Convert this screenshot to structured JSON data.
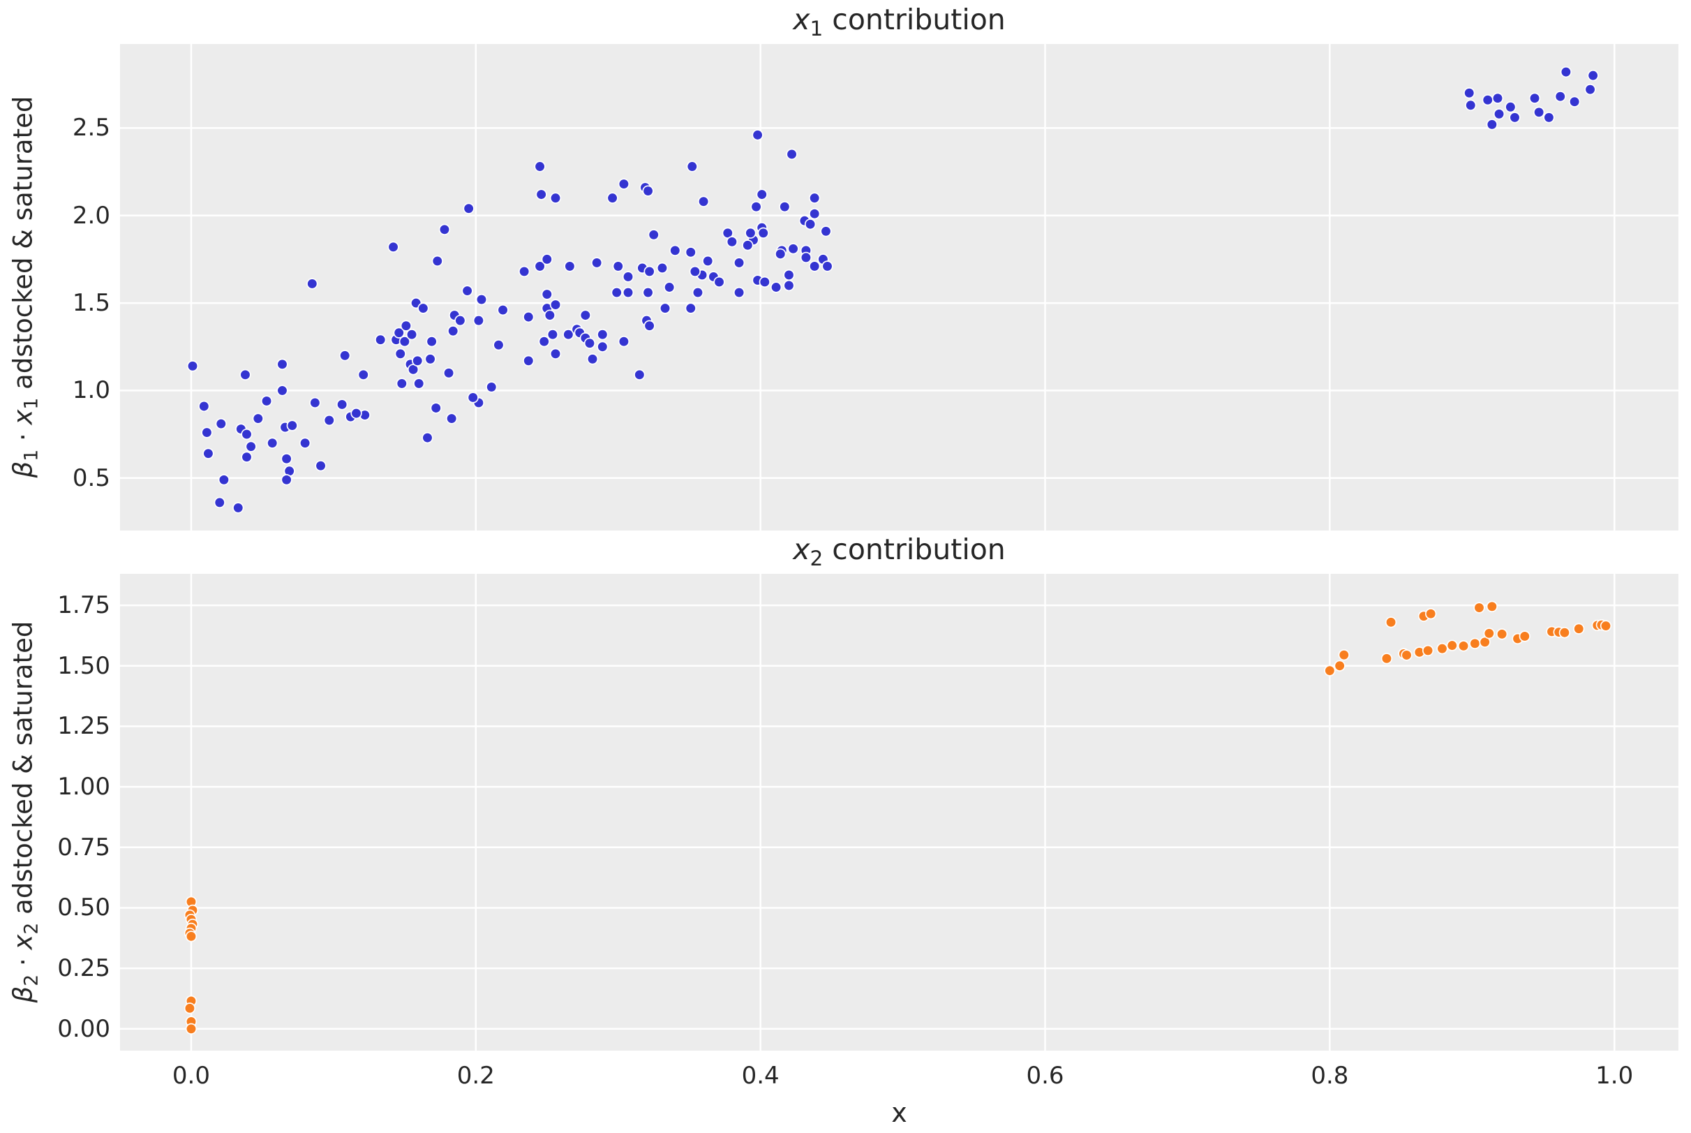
{
  "figure": {
    "background": "#ffffff",
    "axes_background": "#ececec",
    "grid_color": "#ffffff",
    "text_color": "#262626",
    "marker_edge_color": "#ffffff"
  },
  "chart_data": [
    {
      "type": "scatter",
      "title_parts": {
        "var": "x",
        "sub": "1",
        "rest": " contribution"
      },
      "title_text": "x1 contribution",
      "ylabel_parts": {
        "beta": "β",
        "beta_sub": "1",
        "mid": " · ",
        "var": "x",
        "var_sub": "1",
        "rest": " adstocked & saturated"
      },
      "ylabel_text": "β1 · x1 adstocked & saturated",
      "marker_color": "#3434d1",
      "grid": true,
      "legend": false,
      "xlim": [
        -0.05,
        1.045
      ],
      "ylim": [
        0.2,
        2.98
      ],
      "xticks": [
        0.0,
        0.2,
        0.4,
        0.6,
        0.8,
        1.0
      ],
      "xtick_labels": [
        "0.0",
        "0.2",
        "0.4",
        "0.6",
        "0.8",
        "1.0"
      ],
      "show_xtick_labels": false,
      "yticks": [
        0.5,
        1.0,
        1.5,
        2.0,
        2.5
      ],
      "ytick_labels": [
        "0.5",
        "1.0",
        "1.5",
        "2.0",
        "2.5"
      ],
      "points": [
        [
          0.195,
          2.04
        ],
        [
          0.178,
          1.92
        ],
        [
          0.142,
          1.82
        ],
        [
          0.173,
          1.74
        ],
        [
          0.085,
          1.61
        ],
        [
          0.194,
          1.57
        ],
        [
          0.245,
          2.28
        ],
        [
          0.246,
          2.12
        ],
        [
          0.256,
          2.1
        ],
        [
          0.296,
          2.1
        ],
        [
          0.304,
          2.18
        ],
        [
          0.319,
          2.16
        ],
        [
          0.321,
          2.14
        ],
        [
          0.352,
          2.28
        ],
        [
          0.36,
          2.08
        ],
        [
          0.398,
          2.46
        ],
        [
          0.422,
          2.35
        ],
        [
          0.401,
          2.12
        ],
        [
          0.397,
          2.05
        ],
        [
          0.417,
          2.05
        ],
        [
          0.438,
          2.1
        ],
        [
          0.438,
          2.01
        ],
        [
          0.431,
          1.97
        ],
        [
          0.435,
          1.95
        ],
        [
          0.446,
          1.91
        ],
        [
          0.401,
          1.93
        ],
        [
          0.402,
          1.9
        ],
        [
          0.395,
          1.86
        ],
        [
          0.415,
          1.8
        ],
        [
          0.414,
          1.78
        ],
        [
          0.423,
          1.81
        ],
        [
          0.432,
          1.8
        ],
        [
          0.432,
          1.76
        ],
        [
          0.444,
          1.75
        ],
        [
          0.377,
          1.9
        ],
        [
          0.38,
          1.85
        ],
        [
          0.351,
          1.79
        ],
        [
          0.325,
          1.89
        ],
        [
          0.391,
          1.83
        ],
        [
          0.393,
          1.9
        ],
        [
          0.363,
          1.74
        ],
        [
          0.367,
          1.65
        ],
        [
          0.359,
          1.66
        ],
        [
          0.354,
          1.68
        ],
        [
          0.385,
          1.73
        ],
        [
          0.398,
          1.63
        ],
        [
          0.403,
          1.62
        ],
        [
          0.42,
          1.66
        ],
        [
          0.438,
          1.71
        ],
        [
          0.447,
          1.71
        ],
        [
          0.34,
          1.8
        ],
        [
          0.234,
          1.68
        ],
        [
          0.245,
          1.71
        ],
        [
          0.25,
          1.75
        ],
        [
          0.266,
          1.71
        ],
        [
          0.285,
          1.73
        ],
        [
          0.3,
          1.71
        ],
        [
          0.307,
          1.65
        ],
        [
          0.317,
          1.7
        ],
        [
          0.322,
          1.68
        ],
        [
          0.331,
          1.7
        ],
        [
          0.336,
          1.59
        ],
        [
          0.371,
          1.62
        ],
        [
          0.411,
          1.59
        ],
        [
          0.42,
          1.6
        ],
        [
          0.299,
          1.56
        ],
        [
          0.307,
          1.56
        ],
        [
          0.321,
          1.56
        ],
        [
          0.356,
          1.56
        ],
        [
          0.385,
          1.56
        ],
        [
          0.204,
          1.52
        ],
        [
          0.219,
          1.46
        ],
        [
          0.202,
          1.4
        ],
        [
          0.237,
          1.42
        ],
        [
          0.25,
          1.55
        ],
        [
          0.25,
          1.47
        ],
        [
          0.252,
          1.43
        ],
        [
          0.256,
          1.49
        ],
        [
          0.216,
          1.26
        ],
        [
          0.237,
          1.17
        ],
        [
          0.248,
          1.28
        ],
        [
          0.254,
          1.32
        ],
        [
          0.256,
          1.21
        ],
        [
          0.265,
          1.32
        ],
        [
          0.271,
          1.35
        ],
        [
          0.273,
          1.33
        ],
        [
          0.277,
          1.43
        ],
        [
          0.277,
          1.3
        ],
        [
          0.28,
          1.27
        ],
        [
          0.282,
          1.18
        ],
        [
          0.289,
          1.32
        ],
        [
          0.289,
          1.25
        ],
        [
          0.304,
          1.28
        ],
        [
          0.315,
          1.09
        ],
        [
          0.32,
          1.4
        ],
        [
          0.322,
          1.37
        ],
        [
          0.333,
          1.47
        ],
        [
          0.351,
          1.47
        ],
        [
          0.211,
          1.02
        ],
        [
          0.202,
          0.93
        ],
        [
          0.001,
          1.14
        ],
        [
          0.038,
          1.09
        ],
        [
          0.064,
          1.15
        ],
        [
          0.064,
          1.0
        ],
        [
          0.053,
          0.94
        ],
        [
          0.009,
          0.91
        ],
        [
          0.021,
          0.81
        ],
        [
          0.047,
          0.84
        ],
        [
          0.035,
          0.78
        ],
        [
          0.039,
          0.75
        ],
        [
          0.011,
          0.76
        ],
        [
          0.042,
          0.68
        ],
        [
          0.057,
          0.7
        ],
        [
          0.039,
          0.62
        ],
        [
          0.012,
          0.64
        ],
        [
          0.066,
          0.79
        ],
        [
          0.071,
          0.8
        ],
        [
          0.067,
          0.61
        ],
        [
          0.069,
          0.54
        ],
        [
          0.067,
          0.49
        ],
        [
          0.08,
          0.7
        ],
        [
          0.091,
          0.57
        ],
        [
          0.023,
          0.49
        ],
        [
          0.02,
          0.36
        ],
        [
          0.033,
          0.33
        ],
        [
          0.087,
          0.93
        ],
        [
          0.097,
          0.83
        ],
        [
          0.106,
          0.92
        ],
        [
          0.108,
          1.2
        ],
        [
          0.121,
          1.09
        ],
        [
          0.122,
          0.86
        ],
        [
          0.112,
          0.85
        ],
        [
          0.116,
          0.87
        ],
        [
          0.133,
          1.29
        ],
        [
          0.144,
          1.29
        ],
        [
          0.146,
          1.33
        ],
        [
          0.151,
          1.37
        ],
        [
          0.15,
          1.28
        ],
        [
          0.155,
          1.32
        ],
        [
          0.158,
          1.5
        ],
        [
          0.163,
          1.47
        ],
        [
          0.147,
          1.21
        ],
        [
          0.154,
          1.15
        ],
        [
          0.156,
          1.12
        ],
        [
          0.159,
          1.17
        ],
        [
          0.168,
          1.18
        ],
        [
          0.169,
          1.28
        ],
        [
          0.185,
          1.43
        ],
        [
          0.189,
          1.4
        ],
        [
          0.184,
          1.34
        ],
        [
          0.148,
          1.04
        ],
        [
          0.16,
          1.04
        ],
        [
          0.181,
          1.1
        ],
        [
          0.166,
          0.73
        ],
        [
          0.172,
          0.9
        ],
        [
          0.183,
          0.84
        ],
        [
          0.198,
          0.96
        ],
        [
          0.898,
          2.7
        ],
        [
          0.899,
          2.63
        ],
        [
          0.911,
          2.66
        ],
        [
          0.918,
          2.67
        ],
        [
          0.927,
          2.62
        ],
        [
          0.919,
          2.58
        ],
        [
          0.914,
          2.52
        ],
        [
          0.93,
          2.56
        ],
        [
          0.944,
          2.67
        ],
        [
          0.947,
          2.59
        ],
        [
          0.954,
          2.56
        ],
        [
          0.962,
          2.68
        ],
        [
          0.966,
          2.82
        ],
        [
          0.972,
          2.65
        ],
        [
          0.983,
          2.72
        ],
        [
          0.985,
          2.8
        ]
      ]
    },
    {
      "type": "scatter",
      "title_parts": {
        "var": "x",
        "sub": "2",
        "rest": " contribution"
      },
      "title_text": "x2 contribution",
      "ylabel_parts": {
        "beta": "β",
        "beta_sub": "2",
        "mid": " · ",
        "var": "x",
        "var_sub": "2",
        "rest": " adstocked & saturated"
      },
      "ylabel_text": "β2 · x2 adstocked & saturated",
      "xlabel": "x",
      "marker_color": "#f87e1e",
      "grid": true,
      "legend": false,
      "xlim": [
        -0.05,
        1.045
      ],
      "ylim": [
        -0.09,
        1.88
      ],
      "xticks": [
        0.0,
        0.2,
        0.4,
        0.6,
        0.8,
        1.0
      ],
      "xtick_labels": [
        "0.0",
        "0.2",
        "0.4",
        "0.6",
        "0.8",
        "1.0"
      ],
      "show_xtick_labels": true,
      "yticks": [
        0.0,
        0.25,
        0.5,
        0.75,
        1.0,
        1.25,
        1.5,
        1.75
      ],
      "ytick_labels": [
        "0.00",
        "0.25",
        "0.50",
        "0.75",
        "1.00",
        "1.25",
        "1.50",
        "1.75"
      ],
      "points": [
        [
          0.0,
          0.525
        ],
        [
          0.001,
          0.49
        ],
        [
          -0.001,
          0.47
        ],
        [
          0.0,
          0.452
        ],
        [
          0.001,
          0.432
        ],
        [
          0.0,
          0.415
        ],
        [
          -0.001,
          0.395
        ],
        [
          0.0,
          0.382
        ],
        [
          0.0,
          0.115
        ],
        [
          -0.001,
          0.085
        ],
        [
          0.0,
          0.03
        ],
        [
          0.0,
          0.0
        ],
        [
          0.8,
          1.48
        ],
        [
          0.807,
          1.5
        ],
        [
          0.81,
          1.545
        ],
        [
          0.84,
          1.53
        ],
        [
          0.843,
          1.68
        ],
        [
          0.852,
          1.55
        ],
        [
          0.854,
          1.544
        ],
        [
          0.863,
          1.556
        ],
        [
          0.866,
          1.705
        ],
        [
          0.869,
          1.563
        ],
        [
          0.871,
          1.715
        ],
        [
          0.879,
          1.571
        ],
        [
          0.886,
          1.584
        ],
        [
          0.894,
          1.582
        ],
        [
          0.902,
          1.592
        ],
        [
          0.905,
          1.74
        ],
        [
          0.909,
          1.598
        ],
        [
          0.912,
          1.634
        ],
        [
          0.914,
          1.745
        ],
        [
          0.921,
          1.631
        ],
        [
          0.932,
          1.612
        ],
        [
          0.937,
          1.622
        ],
        [
          0.956,
          1.641
        ],
        [
          0.961,
          1.639
        ],
        [
          0.965,
          1.637
        ],
        [
          0.975,
          1.653
        ],
        [
          0.988,
          1.667
        ],
        [
          0.991,
          1.669
        ],
        [
          0.994,
          1.665
        ]
      ]
    }
  ]
}
